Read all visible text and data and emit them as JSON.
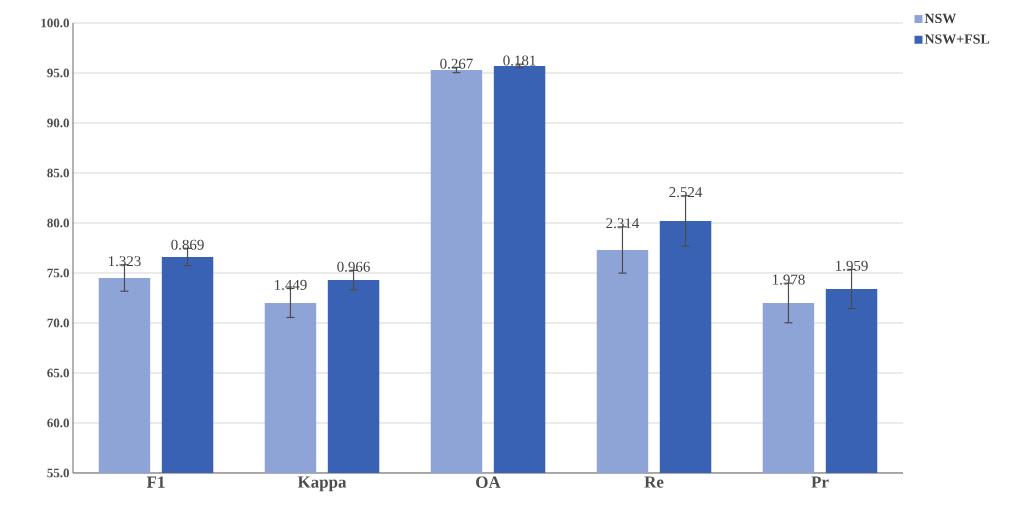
{
  "chart_data": {
    "type": "bar",
    "categories": [
      "F1",
      "Kappa",
      "OA",
      "Re",
      "Pr"
    ],
    "series": [
      {
        "name": "NSW",
        "color": "#8ea3d6",
        "values": [
          74.5,
          72.0,
          95.3,
          77.3,
          72.0
        ],
        "errors": [
          1.323,
          1.449,
          0.267,
          2.314,
          1.978
        ]
      },
      {
        "name": "NSW+FSL",
        "color": "#3a62b4",
        "values": [
          76.6,
          74.3,
          95.7,
          80.2,
          73.4
        ],
        "errors": [
          0.869,
          0.966,
          0.181,
          2.524,
          1.959
        ]
      }
    ],
    "annotations": [
      "1.323",
      "1.449",
      "0.267",
      "2.314",
      "1.978",
      "0.869",
      "0.966",
      "0.181",
      "2.524",
      "1.959"
    ],
    "ylim": [
      55,
      100
    ],
    "yticks": [
      {
        "value": 55,
        "label": "55.0"
      },
      {
        "value": 60,
        "label": "60.0"
      },
      {
        "value": 65,
        "label": "65.0"
      },
      {
        "value": 70,
        "label": "70.0"
      },
      {
        "value": 75,
        "label": "75.0"
      },
      {
        "value": 80,
        "label": "80.0"
      },
      {
        "value": 85,
        "label": "85.0"
      },
      {
        "value": 90,
        "label": "90.0"
      },
      {
        "value": 95,
        "label": "95.0"
      },
      {
        "value": 100,
        "label": "100.0"
      }
    ],
    "grid": "y",
    "legend": "top right"
  }
}
